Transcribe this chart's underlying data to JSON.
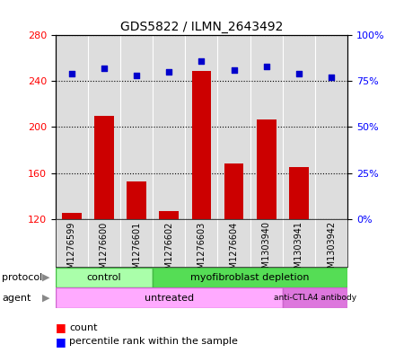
{
  "title": "GDS5822 / ILMN_2643492",
  "samples": [
    "GSM1276599",
    "GSM1276600",
    "GSM1276601",
    "GSM1276602",
    "GSM1276603",
    "GSM1276604",
    "GSM1303940",
    "GSM1303941",
    "GSM1303942"
  ],
  "counts": [
    125,
    210,
    153,
    127,
    249,
    168,
    207,
    165,
    120
  ],
  "percentiles": [
    79,
    82,
    78,
    80,
    86,
    81,
    83,
    79,
    77
  ],
  "ylim_left": [
    120,
    280
  ],
  "ylim_right": [
    0,
    100
  ],
  "yticks_left": [
    120,
    160,
    200,
    240,
    280
  ],
  "yticks_right": [
    0,
    25,
    50,
    75,
    100
  ],
  "bar_color": "#cc0000",
  "scatter_color": "#0000cc",
  "bar_bottom": 120,
  "bg_color": "#dddddd",
  "dotted_line_color": "#000000",
  "protocol_ctrl_color": "#aaffaa",
  "protocol_myof_color": "#55dd55",
  "agent_untr_color": "#ffaaff",
  "agent_anti_color": "#dd77dd"
}
